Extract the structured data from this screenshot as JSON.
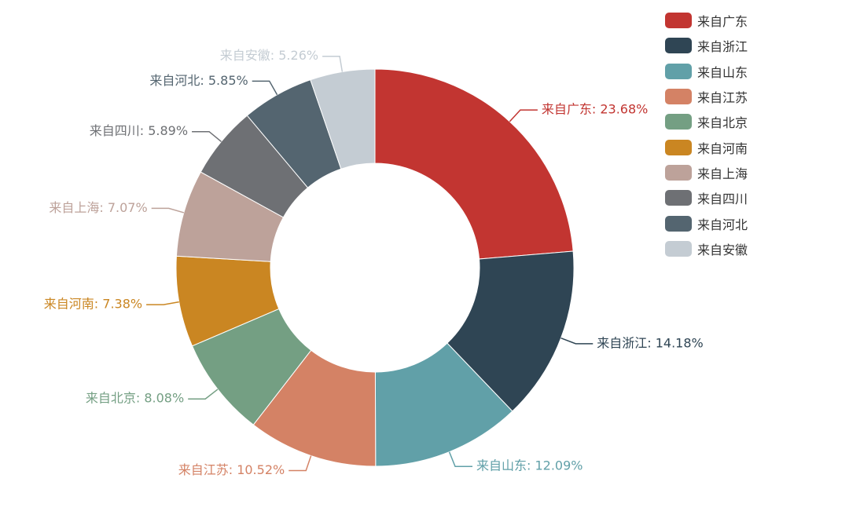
{
  "chart_data": {
    "type": "pie",
    "variant": "donut",
    "title": "",
    "legend_position": "top-right",
    "slices": [
      {
        "name": "来自广东",
        "label": "来自广东: 23.68%",
        "value": 23.68,
        "color": "#c23531"
      },
      {
        "name": "来自浙江",
        "label": "来自浙江: 14.18%",
        "value": 14.18,
        "color": "#2f4554"
      },
      {
        "name": "来自山东",
        "label": "来自山东: 12.09%",
        "value": 12.09,
        "color": "#61a0a8"
      },
      {
        "name": "来自江苏",
        "label": "来自江苏: 10.52%",
        "value": 10.52,
        "color": "#d48265"
      },
      {
        "name": "来自北京",
        "label": "来自北京: 8.08%",
        "value": 8.08,
        "color": "#749f83"
      },
      {
        "name": "来自河南",
        "label": "来自河南: 7.38%",
        "value": 7.38,
        "color": "#ca8622"
      },
      {
        "name": "来自上海",
        "label": "来自上海: 7.07%",
        "value": 7.07,
        "color": "#bda29a"
      },
      {
        "name": "来自四川",
        "label": "来自四川: 5.89%",
        "value": 5.89,
        "color": "#6e7074"
      },
      {
        "name": "来自河北",
        "label": "来自河北: 5.85%",
        "value": 5.85,
        "color": "#546570"
      },
      {
        "name": "来自安徽",
        "label": "来自安徽: 5.26%",
        "value": 5.26,
        "color": "#c4ccd3"
      }
    ]
  }
}
